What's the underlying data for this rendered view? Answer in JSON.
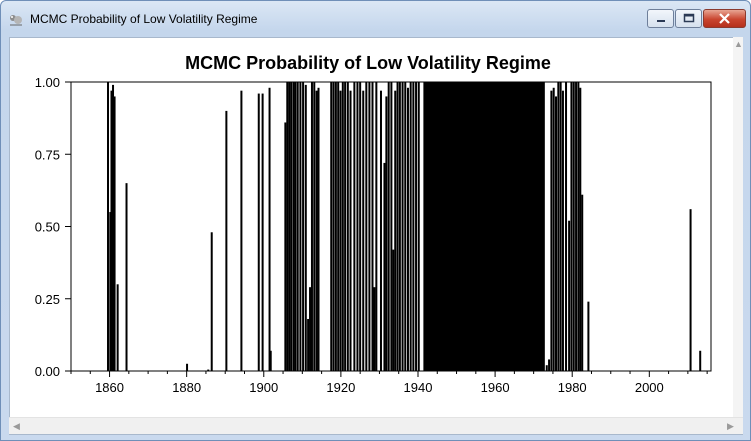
{
  "window": {
    "title": "MCMC Probability of Low Volatility Regime",
    "icon": "rats-app-icon",
    "controls": [
      "minimize-icon",
      "maximize-icon",
      "close-icon"
    ]
  },
  "chart_data": {
    "type": "bar",
    "title": "MCMC Probability of Low Volatility Regime",
    "xlabel": "",
    "ylabel": "",
    "xlim": [
      1850,
      2016
    ],
    "ylim": [
      0,
      1
    ],
    "grid": false,
    "legend": "none",
    "bar_color": "#000000",
    "x_ticks": [
      1860,
      1880,
      1900,
      1920,
      1940,
      1960,
      1980,
      2000
    ],
    "y_ticks": [
      "0.00",
      "0.25",
      "0.50",
      "0.75",
      "1.00"
    ],
    "bars": [
      [
        1859.6,
        1.0
      ],
      [
        1860.2,
        0.55
      ],
      [
        1860.5,
        0.97
      ],
      [
        1860.9,
        0.99
      ],
      [
        1861.3,
        0.95
      ],
      [
        1862.1,
        0.3
      ],
      [
        1864.4,
        0.65
      ],
      [
        1880.1,
        0.025
      ],
      [
        1885.6,
        0.005
      ],
      [
        1886.5,
        0.48
      ],
      [
        1890.3,
        0.9
      ],
      [
        1894.2,
        0.97
      ],
      [
        1898.7,
        0.96
      ],
      [
        1899.7,
        0.96
      ],
      [
        1901.5,
        0.98
      ],
      [
        1901.8,
        0.07
      ],
      [
        1905.6,
        0.86
      ],
      [
        1906.1,
        1.0
      ],
      [
        1906.6,
        1.0
      ],
      [
        1907.1,
        1.0
      ],
      [
        1907.7,
        1.0
      ],
      [
        1908.2,
        1.0
      ],
      [
        1908.8,
        1.0
      ],
      [
        1909.5,
        1.0
      ],
      [
        1910.2,
        1.0
      ],
      [
        1910.9,
        0.99
      ],
      [
        1911.5,
        0.18
      ],
      [
        1912.0,
        0.29
      ],
      [
        1912.5,
        1.0
      ],
      [
        1913.1,
        1.0
      ],
      [
        1913.7,
        0.97
      ],
      [
        1914.2,
        0.98
      ],
      [
        1917.5,
        1.0
      ],
      [
        1918.1,
        1.0
      ],
      [
        1918.7,
        1.0
      ],
      [
        1919.3,
        1.0
      ],
      [
        1919.9,
        0.97
      ],
      [
        1920.5,
        1.0
      ],
      [
        1921.1,
        1.0
      ],
      [
        1921.8,
        1.0
      ],
      [
        1922.5,
        0.97
      ],
      [
        1923.5,
        1.0
      ],
      [
        1924.3,
        1.0
      ],
      [
        1925.0,
        1.0
      ],
      [
        1925.8,
        0.97
      ],
      [
        1926.6,
        1.0
      ],
      [
        1927.4,
        1.0
      ],
      [
        1928.2,
        1.0
      ],
      [
        1928.7,
        0.29
      ],
      [
        1929.2,
        1.0
      ],
      [
        1930.4,
        0.97
      ],
      [
        1931.3,
        0.72
      ],
      [
        1931.8,
        0.95
      ],
      [
        1932.4,
        1.0
      ],
      [
        1933.1,
        1.0
      ],
      [
        1933.6,
        0.42
      ],
      [
        1934.1,
        0.97
      ],
      [
        1934.7,
        1.0
      ],
      [
        1935.3,
        1.0
      ],
      [
        1936.0,
        1.0
      ],
      [
        1936.7,
        1.0
      ],
      [
        1937.4,
        0.98
      ],
      [
        1938.1,
        1.0
      ],
      [
        1938.8,
        1.0
      ],
      [
        1939.5,
        1.0
      ],
      [
        1940.2,
        1.0
      ],
      [
        1973.4,
        0.02
      ],
      [
        1974.0,
        0.04
      ],
      [
        1974.6,
        0.97
      ],
      [
        1975.2,
        0.98
      ],
      [
        1975.8,
        0.95
      ],
      [
        1976.4,
        1.0
      ],
      [
        1977.0,
        1.0
      ],
      [
        1977.6,
        0.97
      ],
      [
        1978.4,
        1.0
      ],
      [
        1979.2,
        0.52
      ],
      [
        1979.8,
        1.0
      ],
      [
        1980.4,
        1.0
      ],
      [
        1981.0,
        1.0
      ],
      [
        1981.6,
        1.0
      ],
      [
        1982.1,
        0.98
      ],
      [
        1982.6,
        0.61
      ],
      [
        1984.2,
        0.24
      ],
      [
        2010.7,
        0.56
      ],
      [
        2013.2,
        0.07
      ]
    ],
    "filled_spans": [
      [
        1941.4,
        1972.9,
        1.0
      ]
    ]
  }
}
